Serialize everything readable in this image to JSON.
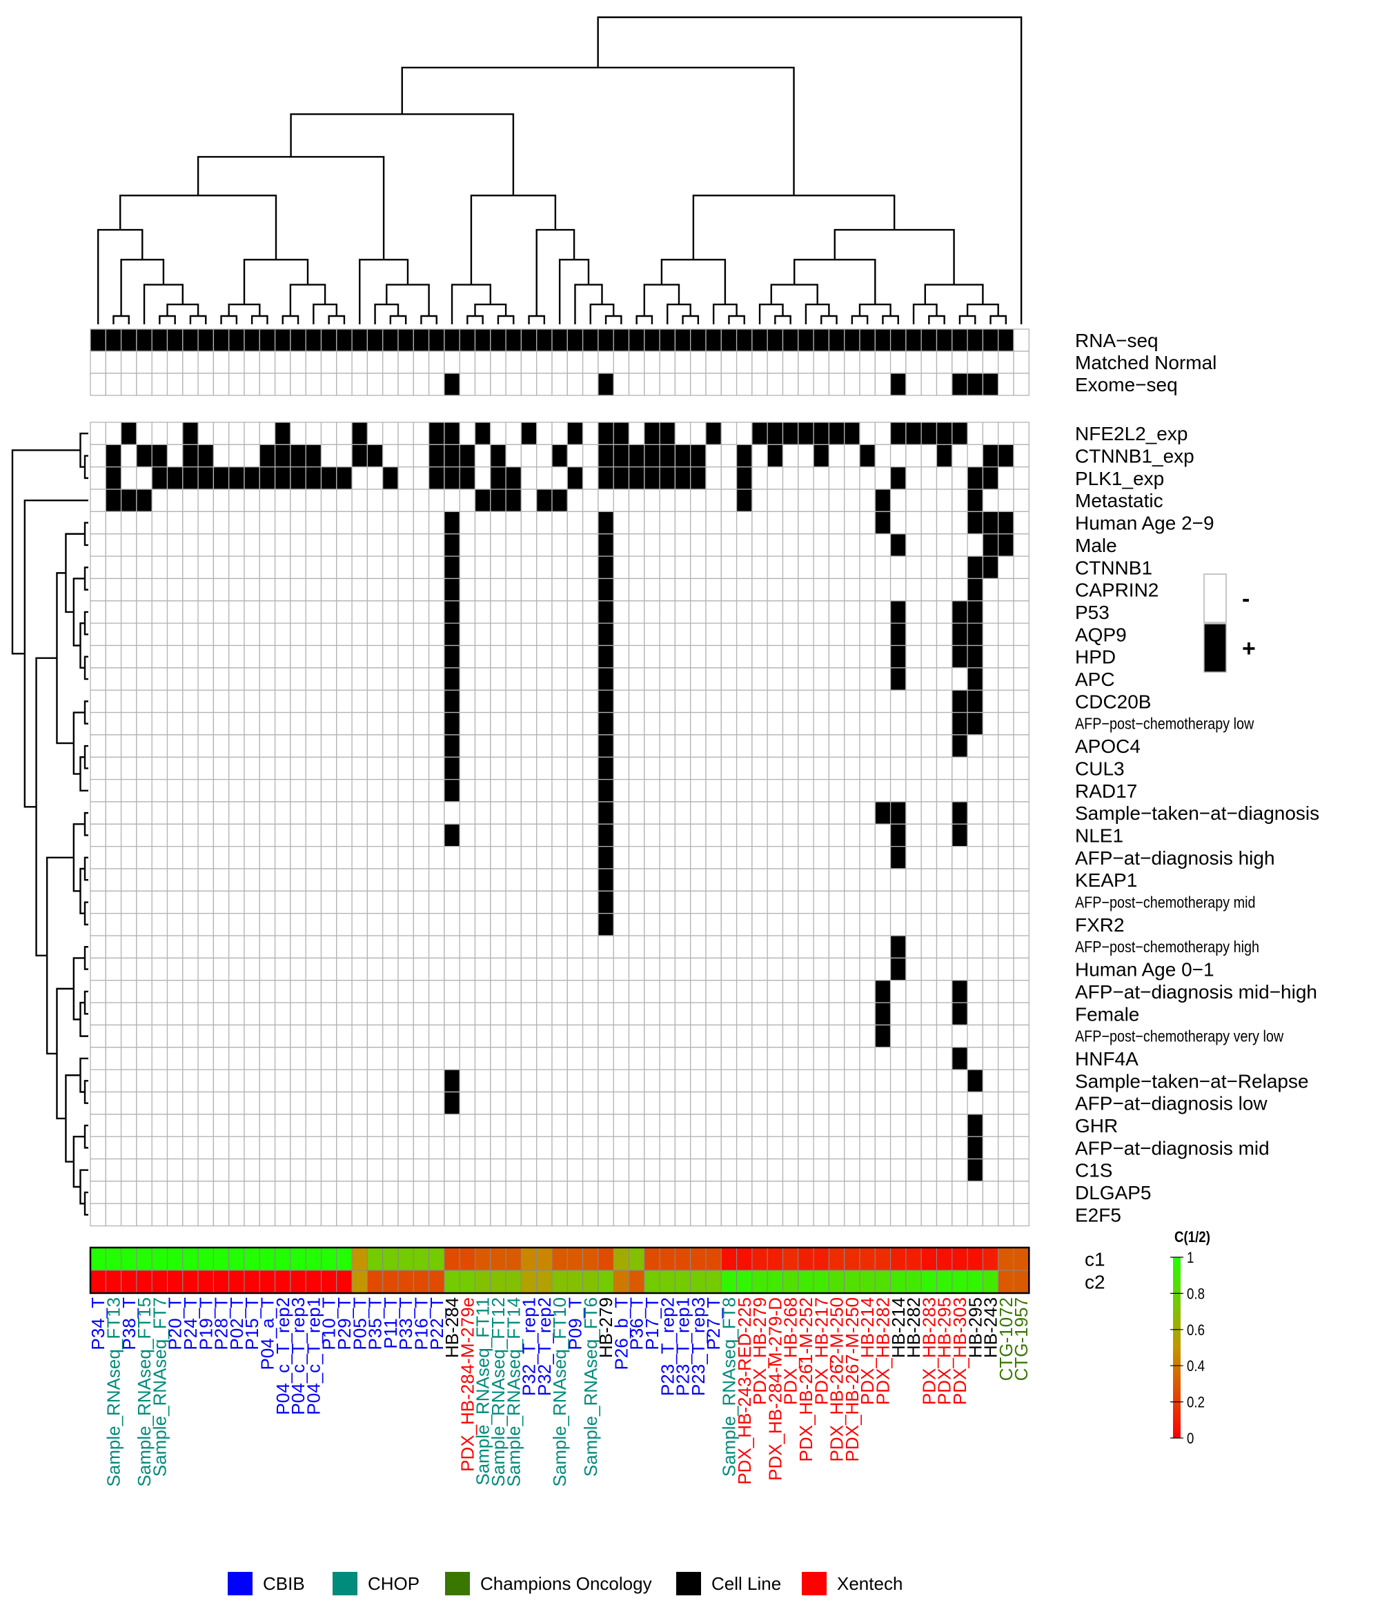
{
  "chart_data": {
    "type": "heatmap",
    "title": "",
    "columns": [
      {
        "label": "P34_T",
        "source": "CBIB"
      },
      {
        "label": "Sample_RNAseq_FT13",
        "source": "CHOP"
      },
      {
        "label": "P38_T",
        "source": "CBIB"
      },
      {
        "label": "Sample_RNAseq_FT15",
        "source": "CHOP"
      },
      {
        "label": "Sample_RNAseq_FT7",
        "source": "CHOP"
      },
      {
        "label": "P20_T",
        "source": "CBIB"
      },
      {
        "label": "P24_T",
        "source": "CBIB"
      },
      {
        "label": "P19_T",
        "source": "CBIB"
      },
      {
        "label": "P28_T",
        "source": "CBIB"
      },
      {
        "label": "P02_T",
        "source": "CBIB"
      },
      {
        "label": "P15_T",
        "source": "CBIB"
      },
      {
        "label": "P04_a_T",
        "source": "CBIB"
      },
      {
        "label": "P04_c_T_rep2",
        "source": "CBIB"
      },
      {
        "label": "P04_c_T_rep3",
        "source": "CBIB"
      },
      {
        "label": "P04_c_T_rep1",
        "source": "CBIB"
      },
      {
        "label": "P10_T",
        "source": "CBIB"
      },
      {
        "label": "P29_T",
        "source": "CBIB"
      },
      {
        "label": "P05_T",
        "source": "CBIB"
      },
      {
        "label": "P35_T",
        "source": "CBIB"
      },
      {
        "label": "P11_T",
        "source": "CBIB"
      },
      {
        "label": "P33_T",
        "source": "CBIB"
      },
      {
        "label": "P16_T",
        "source": "CBIB"
      },
      {
        "label": "P22_T",
        "source": "CBIB"
      },
      {
        "label": "HB-284",
        "source": "Cell Line"
      },
      {
        "label": "PDX_HB-284-M-279e",
        "source": "Xentech"
      },
      {
        "label": "Sample_RNAseq_FT11",
        "source": "CHOP"
      },
      {
        "label": "Sample_RNAseq_FT12",
        "source": "CHOP"
      },
      {
        "label": "Sample_RNAseq_FT14",
        "source": "CHOP"
      },
      {
        "label": "P32_T_rep1",
        "source": "CBIB"
      },
      {
        "label": "P32_T_rep2",
        "source": "CBIB"
      },
      {
        "label": "Sample_RNAseq_FT10",
        "source": "CHOP"
      },
      {
        "label": "P09_T",
        "source": "CBIB"
      },
      {
        "label": "Sample_RNAseq_FT6",
        "source": "CHOP"
      },
      {
        "label": "HB-279",
        "source": "Cell Line"
      },
      {
        "label": "P26_b_T",
        "source": "CBIB"
      },
      {
        "label": "P36_T",
        "source": "CBIB"
      },
      {
        "label": "P17_T",
        "source": "CBIB"
      },
      {
        "label": "P23_T_rep2",
        "source": "CBIB"
      },
      {
        "label": "P23_T_rep1",
        "source": "CBIB"
      },
      {
        "label": "P23_T_rep3",
        "source": "CBIB"
      },
      {
        "label": "P27_T",
        "source": "CBIB"
      },
      {
        "label": "Sample_RNAseq_FT8",
        "source": "CHOP"
      },
      {
        "label": "PDX_HB-243-RED-225",
        "source": "Xentech"
      },
      {
        "label": "PDX_HB-279",
        "source": "Xentech"
      },
      {
        "label": "PDX_HB-284-M-279-D",
        "source": "Xentech"
      },
      {
        "label": "PDX_HB-268",
        "source": "Xentech"
      },
      {
        "label": "PDX_HB-261-M-252",
        "source": "Xentech"
      },
      {
        "label": "PDX_HB-217",
        "source": "Xentech"
      },
      {
        "label": "PDX_HB-262-M-250",
        "source": "Xentech"
      },
      {
        "label": "PDX_HB-267-M-250",
        "source": "Xentech"
      },
      {
        "label": "PDX_HB-214",
        "source": "Xentech"
      },
      {
        "label": "PDX_HB-282",
        "source": "Xentech"
      },
      {
        "label": "HB-214",
        "source": "Cell Line"
      },
      {
        "label": "HB-282",
        "source": "Cell Line"
      },
      {
        "label": "PDX_HB-283",
        "source": "Xentech"
      },
      {
        "label": "PDX_HB-295",
        "source": "Xentech"
      },
      {
        "label": "PDX_HB-303",
        "source": "Xentech"
      },
      {
        "label": "HB-295",
        "source": "Cell Line"
      },
      {
        "label": "HB-243",
        "source": "Cell Line"
      },
      {
        "label": "CTG-1072",
        "source": "Champions Oncology"
      },
      {
        "label": "CTG-1957",
        "source": "Champions Oncology"
      }
    ],
    "rows": [
      "NFE2L2_exp",
      "CTNNB1_exp",
      "PLK1_exp",
      "Metastatic",
      "Human Age 2−9",
      "Male",
      "CTNNB1",
      "CAPRIN2",
      "P53",
      "AQP9",
      "HPD",
      "APC",
      "CDC20B",
      "AFP−post−chemotherapy low",
      "APOC4",
      "CUL3",
      "RAD17",
      "Sample−taken−at−diagnosis",
      "NLE1",
      "AFP−at−diagnosis high",
      "KEAP1",
      "AFP−post−chemotherapy mid",
      "FXR2",
      "AFP−post−chemotherapy high",
      "Human Age 0−1",
      "AFP−at−diagnosis mid−high",
      "Female",
      "AFP−post−chemotherapy very low",
      "HNF4A",
      "Sample−taken−at−Relapse",
      "AFP−at−diagnosis low",
      "GHR",
      "AFP−at−diagnosis mid",
      "C1S",
      "DLGAP5",
      "E2F5"
    ],
    "small_rows": [
      "AFP−post−chemotherapy low",
      "AFP−post−chemotherapy mid",
      "AFP−post−chemotherapy high",
      "AFP−post−chemotherapy very low"
    ],
    "matrix_positive": {
      "NFE2L2_exp": [
        2,
        6,
        12,
        17,
        22,
        23,
        25,
        28,
        31,
        33,
        34,
        36,
        37,
        40,
        43,
        44,
        45,
        46,
        47,
        48,
        49,
        52,
        53,
        54,
        55,
        56
      ],
      "CTNNB1_exp": [
        1,
        3,
        4,
        6,
        7,
        11,
        12,
        13,
        14,
        17,
        18,
        22,
        23,
        24,
        26,
        30,
        33,
        34,
        35,
        36,
        37,
        38,
        39,
        42,
        44,
        47,
        50,
        55,
        58,
        59
      ],
      "PLK1_exp": [
        1,
        4,
        5,
        6,
        7,
        8,
        9,
        10,
        11,
        12,
        13,
        14,
        15,
        16,
        19,
        22,
        23,
        24,
        26,
        27,
        31,
        33,
        34,
        35,
        36,
        37,
        38,
        39,
        42,
        52,
        57,
        58
      ],
      "Metastatic": [
        1,
        2,
        3,
        25,
        26,
        27,
        29,
        30,
        42,
        51,
        57
      ],
      "Human Age 2−9": [
        23,
        33,
        51,
        57,
        58,
        59
      ],
      "Male": [
        23,
        33,
        52,
        58,
        59
      ],
      "CTNNB1": [
        23,
        33,
        57,
        58
      ],
      "CAPRIN2": [
        23,
        33,
        57
      ],
      "P53": [
        23,
        33,
        52,
        56,
        57
      ],
      "AQP9": [
        23,
        33,
        52,
        56,
        57
      ],
      "HPD": [
        23,
        33,
        52,
        56,
        57
      ],
      "APC": [
        23,
        33,
        52,
        57
      ],
      "CDC20B": [
        23,
        33,
        56,
        57
      ],
      "AFP−post−chemotherapy low": [
        23,
        33,
        56,
        57
      ],
      "APOC4": [
        23,
        33,
        56
      ],
      "CUL3": [
        23,
        33
      ],
      "RAD17": [
        23,
        33
      ],
      "Sample−taken−at−diagnosis": [
        33,
        51,
        52,
        56
      ],
      "NLE1": [
        23,
        33,
        52,
        56
      ],
      "AFP−at−diagnosis high": [
        33,
        52
      ],
      "KEAP1": [
        33
      ],
      "AFP−post−chemotherapy mid": [
        33
      ],
      "FXR2": [
        33
      ],
      "AFP−post−chemotherapy high": [
        52
      ],
      "Human Age 0−1": [
        52
      ],
      "AFP−at−diagnosis mid−high": [
        51,
        56
      ],
      "Female": [
        51,
        56
      ],
      "AFP−post−chemotherapy very low": [
        51
      ],
      "HNF4A": [
        56
      ],
      "Sample−taken−at−Relapse": [
        23,
        57
      ],
      "AFP−at−diagnosis low": [
        23
      ],
      "GHR": [
        57
      ],
      "AFP−at−diagnosis mid": [
        57
      ],
      "C1S": [
        57
      ],
      "DLGAP5": [],
      "E2F5": []
    },
    "annotation_tracks": [
      {
        "name": "RNA−seq",
        "positive": "all_except_last"
      },
      {
        "name": "Matched Normal",
        "positive": []
      },
      {
        "name": "Exome−seq",
        "positive": [
          23,
          33,
          52,
          56,
          57,
          58
        ]
      }
    ],
    "legend_binary": [
      {
        "label": "-",
        "color": "#ffffff"
      },
      {
        "label": "+",
        "color": "#000000"
      }
    ],
    "consensus": {
      "rows": [
        "c1",
        "c2"
      ],
      "c1": [
        1,
        1,
        1,
        1,
        1,
        1,
        1,
        1,
        1,
        1,
        1,
        1,
        1,
        1,
        1,
        1,
        1,
        0.5,
        0.75,
        0.75,
        0.75,
        0.75,
        0.75,
        0.25,
        0.25,
        0.3,
        0.3,
        0.3,
        0.45,
        0.45,
        0.3,
        0.3,
        0.3,
        0.25,
        0.6,
        0.7,
        0.25,
        0.25,
        0.25,
        0.25,
        0.25,
        0.05,
        0.05,
        0.1,
        0.1,
        0.15,
        0.1,
        0.1,
        0.15,
        0.15,
        0.15,
        0.15,
        0.1,
        0.1,
        0.05,
        0.05,
        0.05,
        0.05,
        0.1,
        0.3,
        0.3
      ],
      "c2": [
        0,
        0,
        0,
        0,
        0,
        0,
        0,
        0,
        0,
        0,
        0,
        0,
        0,
        0,
        0,
        0,
        0,
        0.5,
        0.25,
        0.25,
        0.25,
        0.25,
        0.25,
        0.75,
        0.75,
        0.7,
        0.7,
        0.7,
        0.55,
        0.55,
        0.7,
        0.7,
        0.7,
        0.75,
        0.4,
        0.3,
        0.75,
        0.75,
        0.75,
        0.75,
        0.75,
        0.95,
        0.95,
        0.9,
        0.9,
        0.85,
        0.9,
        0.9,
        0.85,
        0.85,
        0.85,
        0.85,
        0.9,
        0.9,
        0.95,
        0.95,
        0.95,
        0.95,
        0.9,
        0.3,
        0.3
      ],
      "legend_title": "C(1/2)",
      "legend_ticks": [
        "1",
        "0.8",
        "0.6",
        "0.4",
        "0.2",
        "0"
      ],
      "colors": [
        "#ff0000",
        "#22ff00"
      ]
    },
    "source_legend": [
      {
        "label": "CBIB",
        "color": "#0000ff"
      },
      {
        "label": "CHOP",
        "color": "#008b7a"
      },
      {
        "label": "Champions Oncology",
        "color": "#3a7700"
      },
      {
        "label": "Cell Line",
        "color": "#000000"
      },
      {
        "label": "Xentech",
        "color": "#ff0000"
      }
    ]
  }
}
